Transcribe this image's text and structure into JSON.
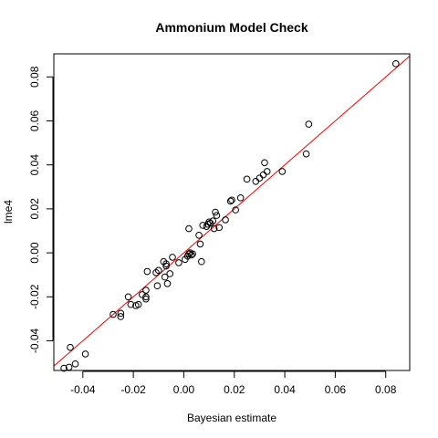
{
  "chart_data": {
    "type": "scatter",
    "title": "Ammonium Model Check",
    "xlabel": "Bayesian estimate",
    "ylabel": "lme4",
    "xlim": [
      -0.0515,
      0.0895
    ],
    "ylim": [
      -0.0535,
      0.0905
    ],
    "x_ticks": [
      -0.04,
      -0.02,
      0.0,
      0.02,
      0.04,
      0.06,
      0.08
    ],
    "x_tick_labels": [
      "-0.04",
      "-0.02",
      "0.00",
      "0.02",
      "0.04",
      "0.06",
      "0.08"
    ],
    "y_ticks": [
      -0.04,
      -0.02,
      0.0,
      0.02,
      0.04,
      0.06,
      0.08
    ],
    "y_tick_labels": [
      "-0.04",
      "-0.02",
      "0.00",
      "0.02",
      "0.04",
      "0.06",
      "0.08"
    ],
    "reference_line": {
      "intercept": 0.0,
      "slope": 1.0,
      "color": "#ff0000"
    },
    "point_color": "#000000",
    "points": [
      [
        -0.0475,
        -0.0525
      ],
      [
        -0.0455,
        -0.052
      ],
      [
        -0.043,
        -0.0505
      ],
      [
        -0.045,
        -0.043
      ],
      [
        -0.039,
        -0.046
      ],
      [
        -0.028,
        -0.028
      ],
      [
        -0.025,
        -0.029
      ],
      [
        -0.025,
        -0.0275
      ],
      [
        -0.022,
        -0.02
      ],
      [
        -0.021,
        -0.0235
      ],
      [
        -0.019,
        -0.024
      ],
      [
        -0.018,
        -0.0235
      ],
      [
        -0.0165,
        -0.019
      ],
      [
        -0.015,
        -0.02
      ],
      [
        -0.015,
        -0.021
      ],
      [
        -0.015,
        -0.017
      ],
      [
        -0.0145,
        -0.0085
      ],
      [
        -0.011,
        -0.009
      ],
      [
        -0.0105,
        -0.015
      ],
      [
        -0.01,
        -0.008
      ],
      [
        -0.008,
        -0.004
      ],
      [
        -0.0075,
        -0.011
      ],
      [
        -0.007,
        -0.006
      ],
      [
        -0.007,
        -0.005
      ],
      [
        -0.0065,
        -0.014
      ],
      [
        -0.0055,
        -0.0095
      ],
      [
        -0.0045,
        -0.002
      ],
      [
        -0.002,
        -0.0045
      ],
      [
        0.0005,
        -0.003
      ],
      [
        0.0015,
        -0.0015
      ],
      [
        0.002,
        -0.0005
      ],
      [
        0.002,
        -0.0005
      ],
      [
        0.0025,
        0.0
      ],
      [
        0.003,
        -0.001
      ],
      [
        0.0035,
        -0.0005
      ],
      [
        0.002,
        0.011
      ],
      [
        0.006,
        0.008
      ],
      [
        0.0065,
        0.004
      ],
      [
        0.007,
        -0.004
      ],
      [
        0.0075,
        0.0125
      ],
      [
        0.009,
        0.012
      ],
      [
        0.0095,
        0.013
      ],
      [
        0.01,
        0.014
      ],
      [
        0.0105,
        0.0135
      ],
      [
        0.0115,
        0.0145
      ],
      [
        0.012,
        0.011
      ],
      [
        0.0125,
        0.0185
      ],
      [
        0.013,
        0.017
      ],
      [
        0.014,
        0.0115
      ],
      [
        0.0165,
        0.015
      ],
      [
        0.0185,
        0.0235
      ],
      [
        0.019,
        0.024
      ],
      [
        0.0205,
        0.0195
      ],
      [
        0.0225,
        0.025
      ],
      [
        0.025,
        0.0335
      ],
      [
        0.0285,
        0.0325
      ],
      [
        0.03,
        0.034
      ],
      [
        0.0315,
        0.0355
      ],
      [
        0.032,
        0.041
      ],
      [
        0.033,
        0.037
      ],
      [
        0.039,
        0.037
      ],
      [
        0.0485,
        0.045
      ],
      [
        0.0495,
        0.0585
      ],
      [
        0.084,
        0.086
      ]
    ]
  }
}
